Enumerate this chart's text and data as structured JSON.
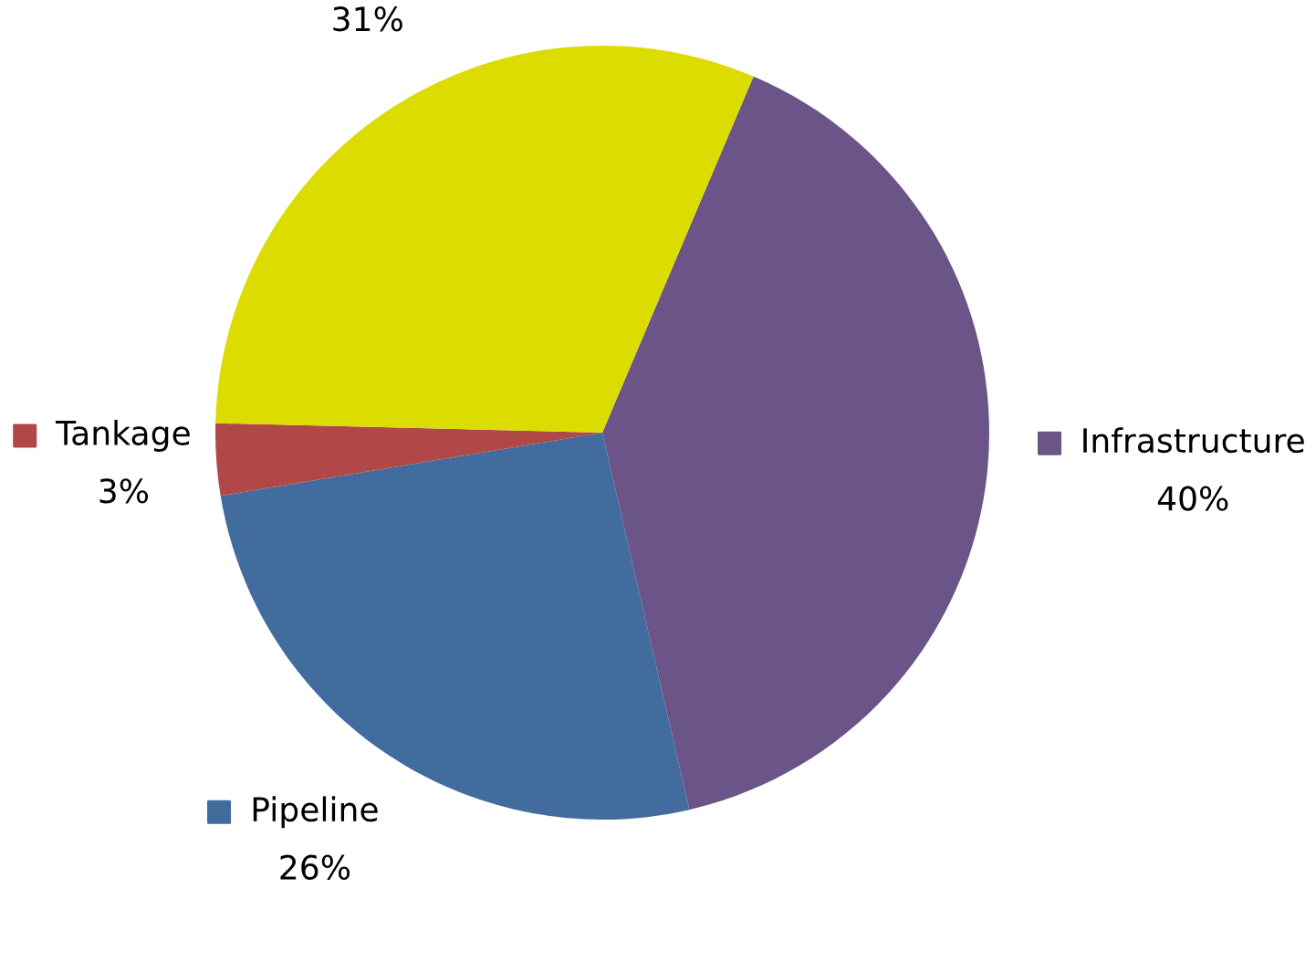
{
  "chart_data": {
    "type": "pie",
    "categories": [
      "Infrastructure",
      "Pipeline",
      "Tankage",
      null
    ],
    "values": [
      40,
      26,
      3,
      31
    ],
    "colors": [
      "#6a5488",
      "#426b9e",
      "#b04848",
      "#dcdc00"
    ],
    "value_labels": [
      "40%",
      "26%",
      "3%",
      "31%"
    ],
    "legend": "bottom right"
  }
}
